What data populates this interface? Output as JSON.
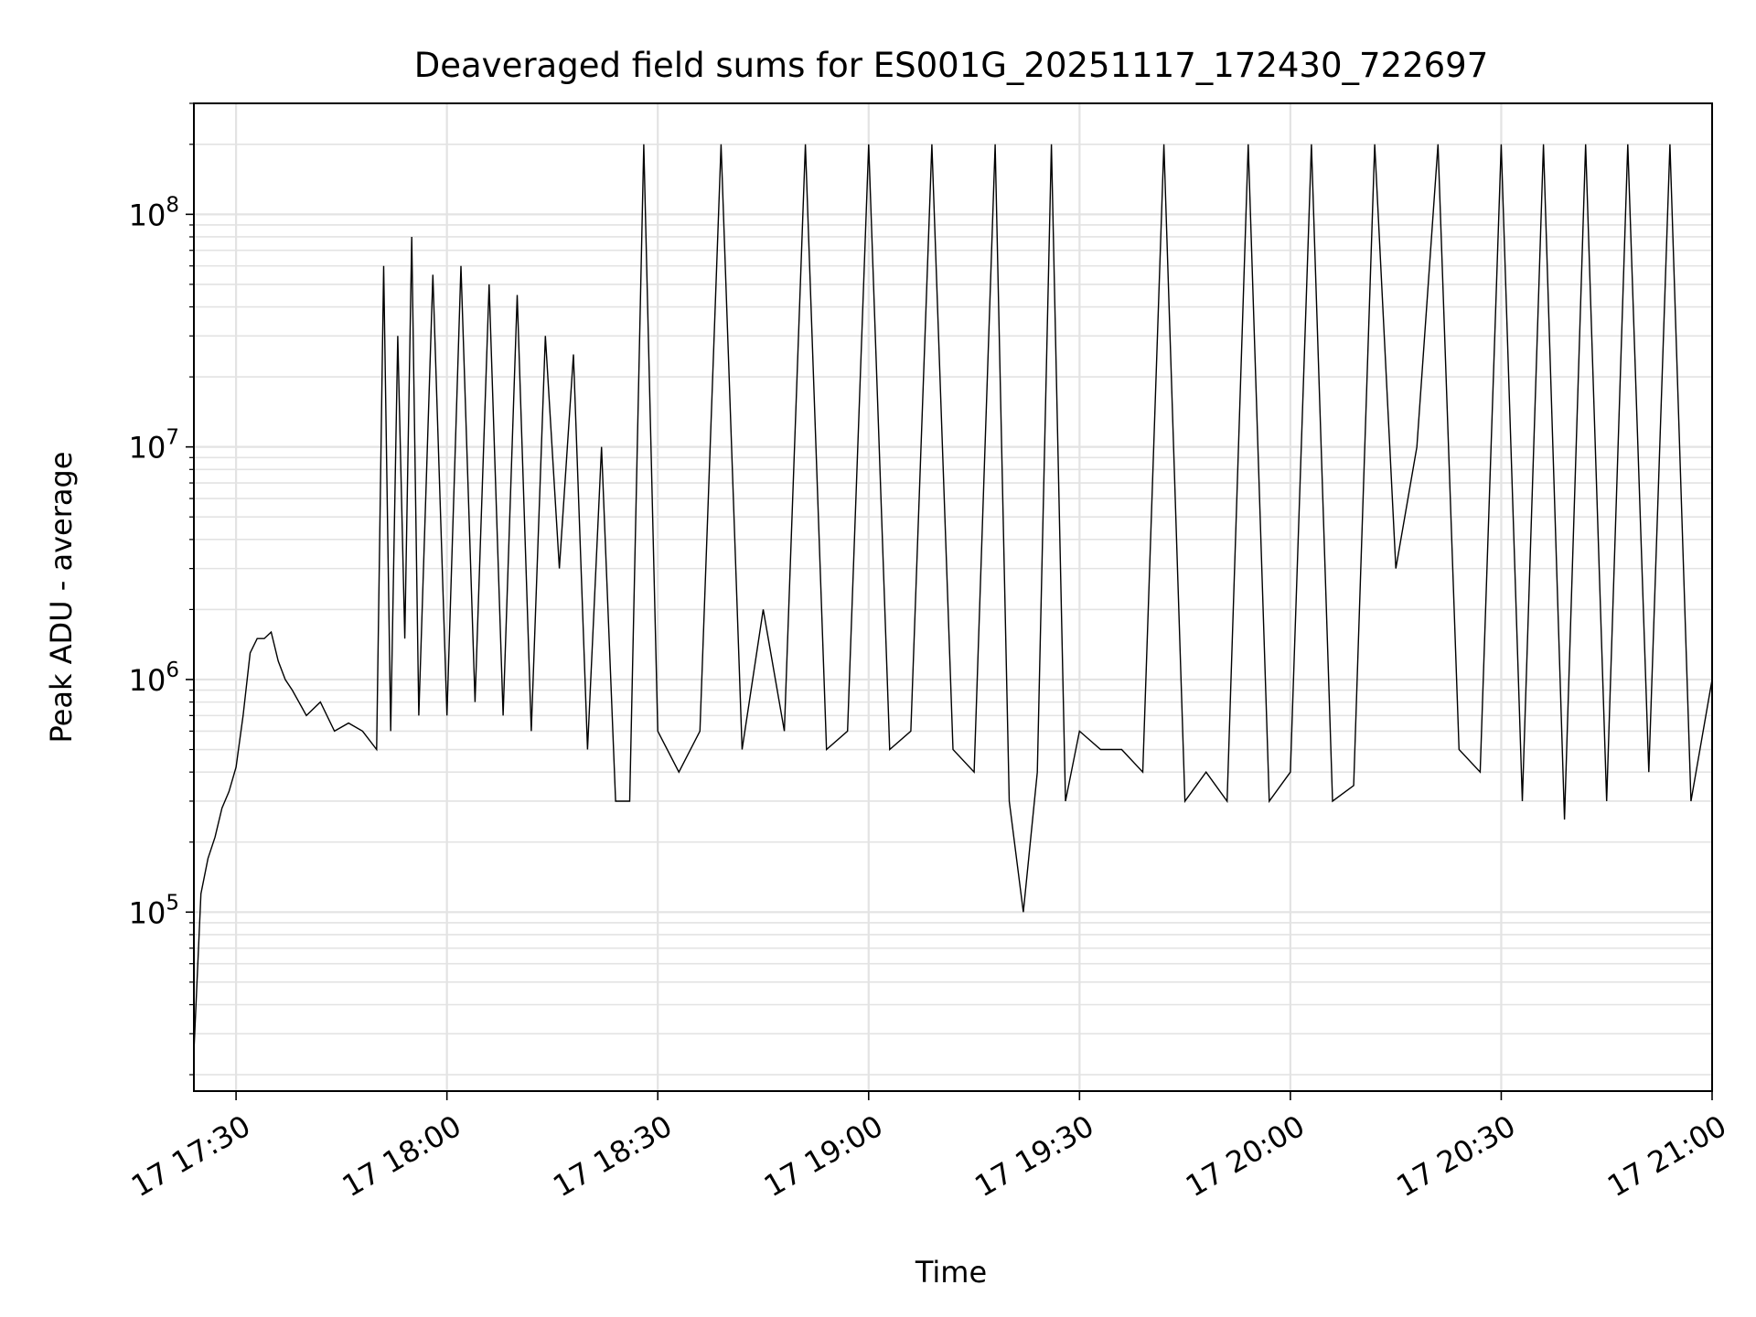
{
  "chart_data": {
    "type": "line",
    "title": "Deaveraged field sums for ES001G_20251117_172430_722697",
    "xlabel": "Time",
    "ylabel": "Peak ADU - average",
    "yscale": "log",
    "ylim": [
      17000,
      300000000
    ],
    "xlim": [
      "17:24",
      "21:00"
    ],
    "grid": "on (major and minor)",
    "x_tick_labels": [
      "17 17:30",
      "17 18:00",
      "17 18:30",
      "17 19:00",
      "17 19:30",
      "17 20:00",
      "17 20:30",
      "17 21:00"
    ],
    "y_tick_labels": [
      {
        "base": "10",
        "exp": "5",
        "value": 100000
      },
      {
        "base": "10",
        "exp": "6",
        "value": 1000000
      },
      {
        "base": "10",
        "exp": "7",
        "value": 10000000
      },
      {
        "base": "10",
        "exp": "8",
        "value": 100000000
      }
    ],
    "series": [
      {
        "color": "#000000",
        "x": [
          "17:24",
          "17:25",
          "17:26",
          "17:27",
          "17:28",
          "17:29",
          "17:30",
          "17:31",
          "17:32",
          "17:33",
          "17:34",
          "17:35",
          "17:36",
          "17:37",
          "17:38",
          "17:40",
          "17:42",
          "17:44",
          "17:46",
          "17:48",
          "17:50",
          "17:51",
          "17:52",
          "17:53",
          "17:54",
          "17:55",
          "17:56",
          "17:58",
          "18:00",
          "18:02",
          "18:04",
          "18:06",
          "18:08",
          "18:10",
          "18:12",
          "18:14",
          "18:16",
          "18:18",
          "18:20",
          "18:22",
          "18:24",
          "18:26",
          "18:28",
          "18:30",
          "18:33",
          "18:36",
          "18:39",
          "18:42",
          "18:45",
          "18:48",
          "18:51",
          "18:54",
          "18:57",
          "19:00",
          "19:03",
          "19:06",
          "19:09",
          "19:12",
          "19:15",
          "19:18",
          "19:20",
          "19:22",
          "19:24",
          "19:26",
          "19:28",
          "19:30",
          "19:33",
          "19:36",
          "19:39",
          "19:42",
          "19:45",
          "19:48",
          "19:51",
          "19:54",
          "19:57",
          "20:00",
          "20:03",
          "20:06",
          "20:09",
          "20:12",
          "20:15",
          "20:18",
          "20:21",
          "20:24",
          "20:27",
          "20:30",
          "20:33",
          "20:36",
          "20:39",
          "20:42",
          "20:45",
          "20:48",
          "20:51",
          "20:54",
          "20:57",
          "21:00"
        ],
        "y": [
          25000,
          120000,
          170000,
          210000,
          280000,
          330000,
          420000,
          700000,
          1300000,
          1500000,
          1500000,
          1600000,
          1200000,
          1000000,
          900000,
          700000,
          800000,
          600000,
          650000,
          600000,
          500000,
          60000000,
          600000,
          30000000,
          1500000,
          80000000,
          700000,
          55000000,
          700000,
          60000000,
          800000,
          50000000,
          700000,
          45000000,
          600000,
          30000000,
          3000000,
          25000000,
          500000,
          10000000,
          300000,
          300000,
          200000000,
          600000,
          400000,
          600000,
          200000000,
          500000,
          2000000,
          600000,
          200000000,
          500000,
          600000,
          200000000,
          500000,
          600000,
          200000000,
          500000,
          400000,
          200000000,
          300000,
          100000,
          400000,
          200000000,
          300000,
          600000,
          500000,
          500000,
          400000,
          200000000,
          300000,
          400000,
          300000,
          200000000,
          300000,
          400000,
          200000000,
          300000,
          350000,
          200000000,
          3000000,
          10000000,
          200000000,
          500000,
          400000,
          200000000,
          300000,
          200000000,
          250000,
          200000000,
          300000,
          200000000,
          400000,
          200000000,
          300000,
          1000000
        ]
      }
    ]
  }
}
